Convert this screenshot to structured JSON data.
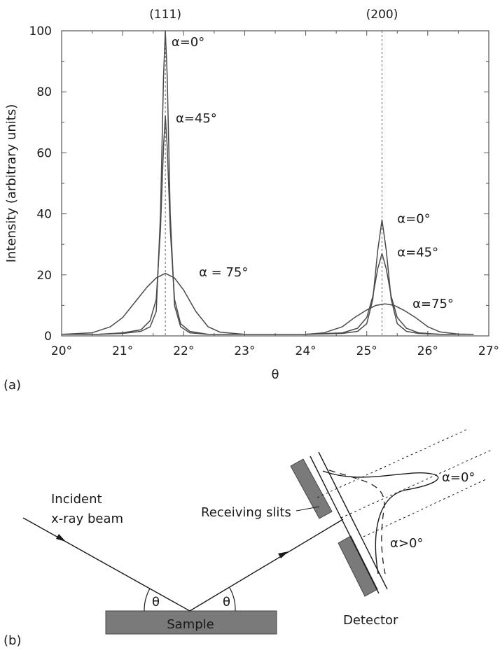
{
  "chart_data": {
    "type": "line",
    "xlabel": "θ",
    "ylabel": "Intensity (arbitrary units)",
    "xlim": [
      20,
      27
    ],
    "ylim": [
      0,
      100
    ],
    "x_ticks": [
      "20°",
      "21°",
      "22°",
      "23°",
      "24°",
      "25°",
      "26°",
      "27°"
    ],
    "x_tick_values": [
      20,
      21,
      22,
      23,
      24,
      25,
      26,
      27
    ],
    "y_ticks": [
      "0",
      "20",
      "40",
      "60",
      "80",
      "100"
    ],
    "y_tick_values": [
      0,
      20,
      40,
      60,
      80,
      100
    ],
    "grid": false,
    "reference_lines": [
      {
        "x": 21.7,
        "label": "(111)"
      },
      {
        "x": 25.25,
        "label": "(200)"
      }
    ],
    "series": [
      {
        "name": "α=0°",
        "color": "#4a4a4a",
        "x": [
          20.0,
          20.6,
          21.0,
          21.3,
          21.45,
          21.55,
          21.62,
          21.67,
          21.7,
          21.73,
          21.78,
          21.85,
          21.95,
          22.1,
          22.4,
          23.0,
          24.0,
          24.6,
          24.85,
          25.0,
          25.1,
          25.18,
          25.25,
          25.32,
          25.4,
          25.5,
          25.65,
          25.85,
          26.2,
          26.75
        ],
        "y": [
          0.5,
          0.5,
          0.8,
          1.5,
          3,
          8,
          40,
          85,
          100,
          85,
          40,
          10,
          3,
          1,
          0.5,
          0.5,
          0.5,
          0.8,
          1.5,
          4,
          12,
          28,
          38,
          28,
          12,
          4,
          1.5,
          0.8,
          0.5,
          0.5
        ]
      },
      {
        "name": "α=45°",
        "color": "#4a4a4a",
        "x": [
          20.0,
          20.6,
          21.0,
          21.3,
          21.45,
          21.55,
          21.62,
          21.67,
          21.7,
          21.73,
          21.78,
          21.85,
          21.95,
          22.1,
          22.4,
          23.0,
          24.0,
          24.6,
          24.85,
          25.0,
          25.1,
          25.18,
          25.25,
          25.32,
          25.4,
          25.5,
          25.65,
          25.85,
          26.2,
          26.75
        ],
        "y": [
          0.5,
          0.5,
          1,
          2,
          5,
          12,
          35,
          62,
          72,
          62,
          35,
          12,
          4,
          1.5,
          0.5,
          0.5,
          0.5,
          1,
          2.5,
          6,
          13,
          22,
          27,
          22,
          13,
          6,
          2.5,
          1,
          0.5,
          0.5
        ]
      },
      {
        "name": "α = 75°",
        "color": "#4a4a4a",
        "x": [
          20.0,
          20.5,
          20.8,
          21.0,
          21.2,
          21.4,
          21.55,
          21.7,
          21.85,
          22.0,
          22.2,
          22.4,
          22.6,
          23.0,
          23.5,
          24.0,
          24.3,
          24.6,
          24.8,
          25.0,
          25.15,
          25.3,
          25.45,
          25.6,
          25.8,
          26.0,
          26.2,
          26.5,
          26.75
        ],
        "y": [
          0.5,
          1,
          3,
          6,
          11,
          16,
          19,
          20.5,
          19,
          15,
          8,
          3,
          1.2,
          0.5,
          0.5,
          0.5,
          1,
          3,
          6,
          8.5,
          10,
          10.5,
          10,
          8.5,
          6,
          3,
          1.3,
          0.6,
          0.5
        ]
      }
    ],
    "annotations": [
      {
        "text": "α=0°",
        "x": 21.8,
        "y": 95
      },
      {
        "text": "α=45°",
        "x": 21.87,
        "y": 70
      },
      {
        "text": "α = 75°",
        "x": 22.25,
        "y": 19.5
      },
      {
        "text": "α=0°",
        "x": 25.5,
        "y": 37
      },
      {
        "text": "α=45°",
        "x": 25.5,
        "y": 26
      },
      {
        "text": "α=75°",
        "x": 25.75,
        "y": 9.2
      }
    ]
  },
  "panel_a_label": "(a)",
  "panel_b_label": "(b)",
  "diagram": {
    "incident_label_1": "Incident",
    "incident_label_2": "x-ray beam",
    "receiving_slits": "Receiving slits",
    "sample": "Sample",
    "detector": "Detector",
    "theta_left": "θ",
    "theta_right": "θ",
    "alpha_zero": "α=0°",
    "alpha_pos": "α>0°"
  }
}
